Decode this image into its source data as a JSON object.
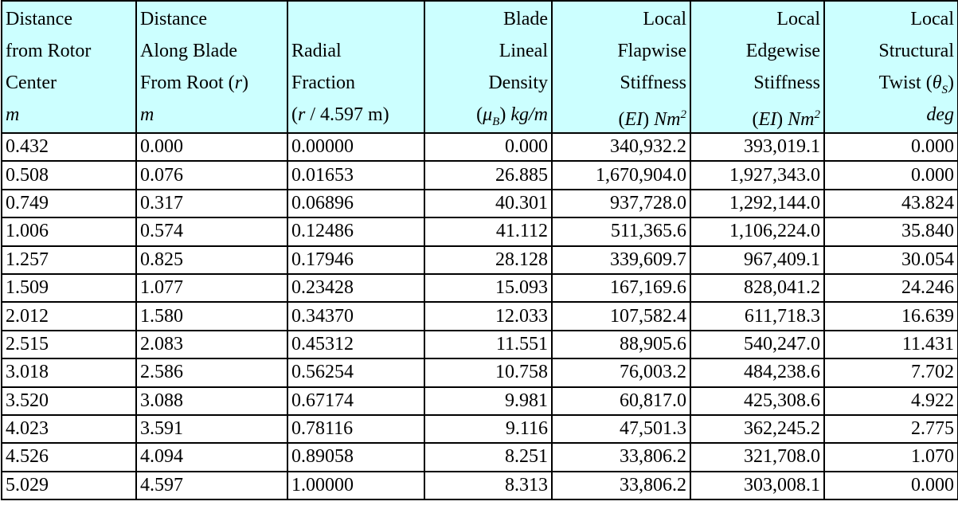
{
  "table": {
    "header": [
      {
        "align": "left",
        "lines": [
          [
            "Distance"
          ],
          [
            "from Rotor"
          ],
          [
            "Center"
          ],
          [
            {
              "em": "m"
            }
          ]
        ]
      },
      {
        "align": "left",
        "lines": [
          [
            "Distance"
          ],
          [
            "Along Blade"
          ],
          [
            "From Root (",
            {
              "em": "r"
            },
            ")"
          ],
          [
            {
              "em": "m"
            }
          ]
        ]
      },
      {
        "align": "left",
        "lines": [
          [
            "Radial"
          ],
          [
            "Fraction"
          ],
          [
            "(",
            {
              "em": "r"
            },
            " / 4.597 m)"
          ]
        ]
      },
      {
        "align": "right",
        "lines": [
          [
            "Blade"
          ],
          [
            "Lineal"
          ],
          [
            "Density"
          ],
          [
            "(",
            {
              "em": "μ"
            },
            {
              "sub": "B"
            },
            ") ",
            {
              "em": "kg/m"
            }
          ]
        ]
      },
      {
        "align": "right",
        "lines": [
          [
            "Local"
          ],
          [
            "Flapwise"
          ],
          [
            "Stiffness"
          ],
          [
            "(",
            {
              "em": "EI"
            },
            ") ",
            {
              "em": "Nm"
            },
            {
              "sup": "2"
            }
          ]
        ]
      },
      {
        "align": "right",
        "lines": [
          [
            "Local"
          ],
          [
            "Edgewise"
          ],
          [
            "Stiffness"
          ],
          [
            "(",
            {
              "em": "EI"
            },
            ") ",
            {
              "em": "Nm"
            },
            {
              "sup": "2"
            }
          ]
        ]
      },
      {
        "align": "right",
        "lines": [
          [
            "Local"
          ],
          [
            "Structural"
          ],
          [
            "Twist (",
            {
              "em": "θ"
            },
            {
              "sub": "S"
            },
            ")"
          ],
          [
            {
              "em": "deg"
            }
          ]
        ]
      }
    ],
    "rows": [
      [
        "0.432",
        "0.000",
        "0.00000",
        "0.000",
        "340,932.2",
        "393,019.1",
        "0.000"
      ],
      [
        "0.508",
        "0.076",
        "0.01653",
        "26.885",
        "1,670,904.0",
        "1,927,343.0",
        "0.000"
      ],
      [
        "0.749",
        "0.317",
        "0.06896",
        "40.301",
        "937,728.0",
        "1,292,144.0",
        "43.824"
      ],
      [
        "1.006",
        "0.574",
        "0.12486",
        "41.112",
        "511,365.6",
        "1,106,224.0",
        "35.840"
      ],
      [
        "1.257",
        "0.825",
        "0.17946",
        "28.128",
        "339,609.7",
        "967,409.1",
        "30.054"
      ],
      [
        "1.509",
        "1.077",
        "0.23428",
        "15.093",
        "167,169.6",
        "828,041.2",
        "24.246"
      ],
      [
        "2.012",
        "1.580",
        "0.34370",
        "12.033",
        "107,582.4",
        "611,718.3",
        "16.639"
      ],
      [
        "2.515",
        "2.083",
        "0.45312",
        "11.551",
        "88,905.6",
        "540,247.0",
        "11.431"
      ],
      [
        "3.018",
        "2.586",
        "0.56254",
        "10.758",
        "76,003.2",
        "484,238.6",
        "7.702"
      ],
      [
        "3.520",
        "3.088",
        "0.67174",
        "9.981",
        "60,817.0",
        "425,308.6",
        "4.922"
      ],
      [
        "4.023",
        "3.591",
        "0.78116",
        "9.116",
        "47,501.3",
        "362,245.2",
        "2.775"
      ],
      [
        "4.526",
        "4.094",
        "0.89058",
        "8.251",
        "33,806.2",
        "321,708.0",
        "1.070"
      ],
      [
        "5.029",
        "4.597",
        "1.00000",
        "8.313",
        "33,806.2",
        "303,008.1",
        "0.000"
      ]
    ]
  }
}
